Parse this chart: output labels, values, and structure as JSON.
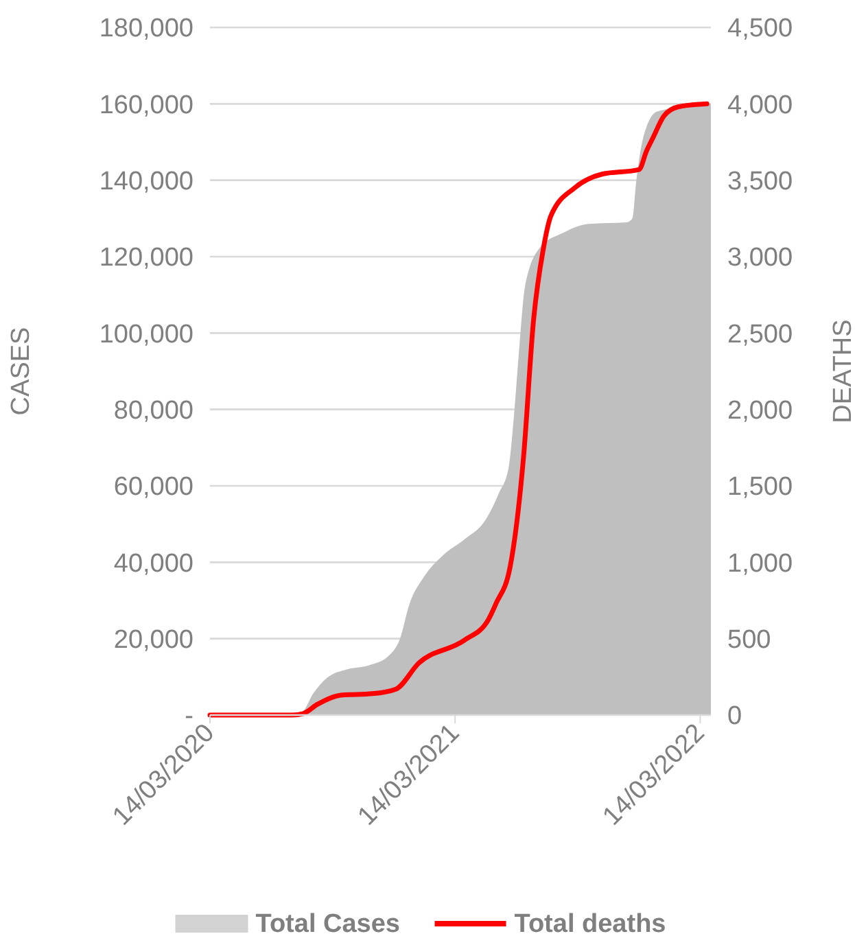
{
  "chart_data": {
    "type": "area",
    "ylabel": "CASES",
    "y2label": "DEATHS",
    "xlim": [
      "2020-03-14",
      "2022-03-30"
    ],
    "xticks": [
      {
        "value": "2020-03-14",
        "label": "14/03/2020"
      },
      {
        "value": "2021-03-14",
        "label": "14/03/2021"
      },
      {
        "value": "2022-03-14",
        "label": "14/03/2022"
      }
    ],
    "ylim": [
      0,
      180000
    ],
    "yticks": [
      {
        "value": 0,
        "label": "-"
      },
      {
        "value": 20000,
        "label": "20,000"
      },
      {
        "value": 40000,
        "label": "40,000"
      },
      {
        "value": 60000,
        "label": "60,000"
      },
      {
        "value": 80000,
        "label": "80,000"
      },
      {
        "value": 100000,
        "label": "100,000"
      },
      {
        "value": 120000,
        "label": "120,000"
      },
      {
        "value": 140000,
        "label": "140,000"
      },
      {
        "value": 160000,
        "label": "160,000"
      },
      {
        "value": 180000,
        "label": "180,000"
      }
    ],
    "y2lim": [
      0,
      4500
    ],
    "y2ticks": [
      0,
      500,
      {
        "value": 1000,
        "label": "1,000"
      },
      {
        "value": 1500,
        "label": "1,500"
      },
      {
        "value": 2000,
        "label": "2,000"
      },
      {
        "value": 2500,
        "label": "2,500"
      },
      {
        "value": 3000,
        "label": "3,000"
      },
      {
        "value": 3500,
        "label": "3,500"
      },
      {
        "value": 4000,
        "label": "4,000"
      },
      {
        "value": 4500,
        "label": "4,500"
      }
    ],
    "grid": "y",
    "legend": "bottom",
    "series": [
      {
        "name": "Total Cases",
        "axis": "y",
        "color": "#bfbfbf",
        "x": [
          "2020-03-14",
          "2020-07-15",
          "2020-07-29",
          "2020-08-15",
          "2020-09-04",
          "2020-10-05",
          "2020-11-05",
          "2020-12-05",
          "2020-12-22",
          "2021-01-05",
          "2021-01-26",
          "2021-02-25",
          "2021-03-28",
          "2021-04-28",
          "2021-05-18",
          "2021-06-02",
          "2021-06-10",
          "2021-06-18",
          "2021-06-26",
          "2021-07-19",
          "2021-08-19",
          "2021-09-29",
          "2021-11-25",
          "2021-12-03",
          "2021-12-09",
          "2021-12-19",
          "2022-01-09",
          "2022-03-30"
        ],
        "values": [
          0,
          0,
          700,
          5700,
          9700,
          12000,
          13000,
          15500,
          20000,
          29000,
          36000,
          42000,
          46000,
          51000,
          58000,
          65000,
          79000,
          97000,
          112000,
          122500,
          126000,
          128600,
          129000,
          130000,
          140000,
          151000,
          158000,
          160000
        ]
      },
      {
        "name": "Total deaths",
        "type": "line",
        "axis": "y2",
        "color": "#ff0000",
        "marker": "none",
        "x": [
          "2020-03-14",
          "2020-07-15",
          "2020-07-31",
          "2020-08-21",
          "2020-09-25",
          "2020-11-11",
          "2020-12-16",
          "2021-01-19",
          "2021-03-28",
          "2021-05-02",
          "2021-05-14",
          "2021-06-04",
          "2021-06-24",
          "2021-07-09",
          "2021-07-23",
          "2021-08-04",
          "2021-09-08",
          "2021-10-19",
          "2021-12-13",
          "2021-12-24",
          "2022-01-03",
          "2022-01-19",
          "2022-02-09",
          "2022-03-24"
        ],
        "values": [
          0,
          0,
          10,
          70,
          130,
          140,
          170,
          340,
          490,
          620,
          730,
          970,
          1690,
          2590,
          3040,
          3270,
          3450,
          3540,
          3570,
          3690,
          3780,
          3920,
          3980,
          4000
        ]
      }
    ]
  }
}
